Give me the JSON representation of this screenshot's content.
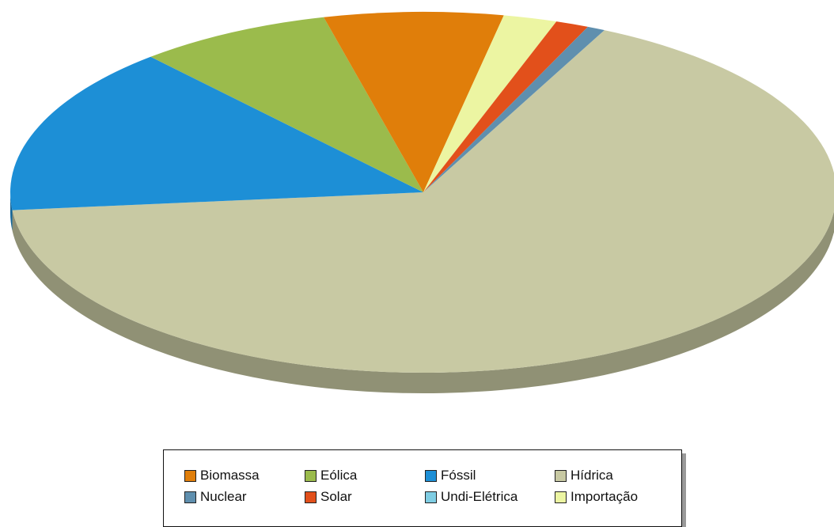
{
  "chart_data": {
    "type": "pie",
    "categories": [
      "Hídrica",
      "Fóssil",
      "Eólica",
      "Biomassa",
      "Importação",
      "Solar",
      "Nuclear",
      "Undi-Elétrica"
    ],
    "values": [
      66.2,
      15.1,
      7.6,
      7.0,
      2.1,
      1.3,
      0.7,
      0.0
    ],
    "colors": {
      "Biomassa": "#e07e0a",
      "Eólica": "#9bbb4c",
      "Fóssil": "#1d8fd6",
      "Hídrica": "#c8c9a3",
      "Nuclear": "#5f8fae",
      "Solar": "#e2501b",
      "Undi-Elétrica": "#7fcde3",
      "Importação": "#ecf5a2"
    },
    "legend_position": "bottom",
    "style": "3d-pie"
  },
  "legend": {
    "items": [
      {
        "label": "Biomassa",
        "color": "#e07e0a"
      },
      {
        "label": "Eólica",
        "color": "#9bbb4c"
      },
      {
        "label": "Fóssil",
        "color": "#1d8fd6"
      },
      {
        "label": "Hídrica",
        "color": "#c8c9a3"
      },
      {
        "label": "Nuclear",
        "color": "#5f8fae"
      },
      {
        "label": "Solar",
        "color": "#e2501b"
      },
      {
        "label": "Undi-Elétrica",
        "color": "#7fcde3"
      },
      {
        "label": "Importação",
        "color": "#ecf5a2"
      }
    ]
  }
}
